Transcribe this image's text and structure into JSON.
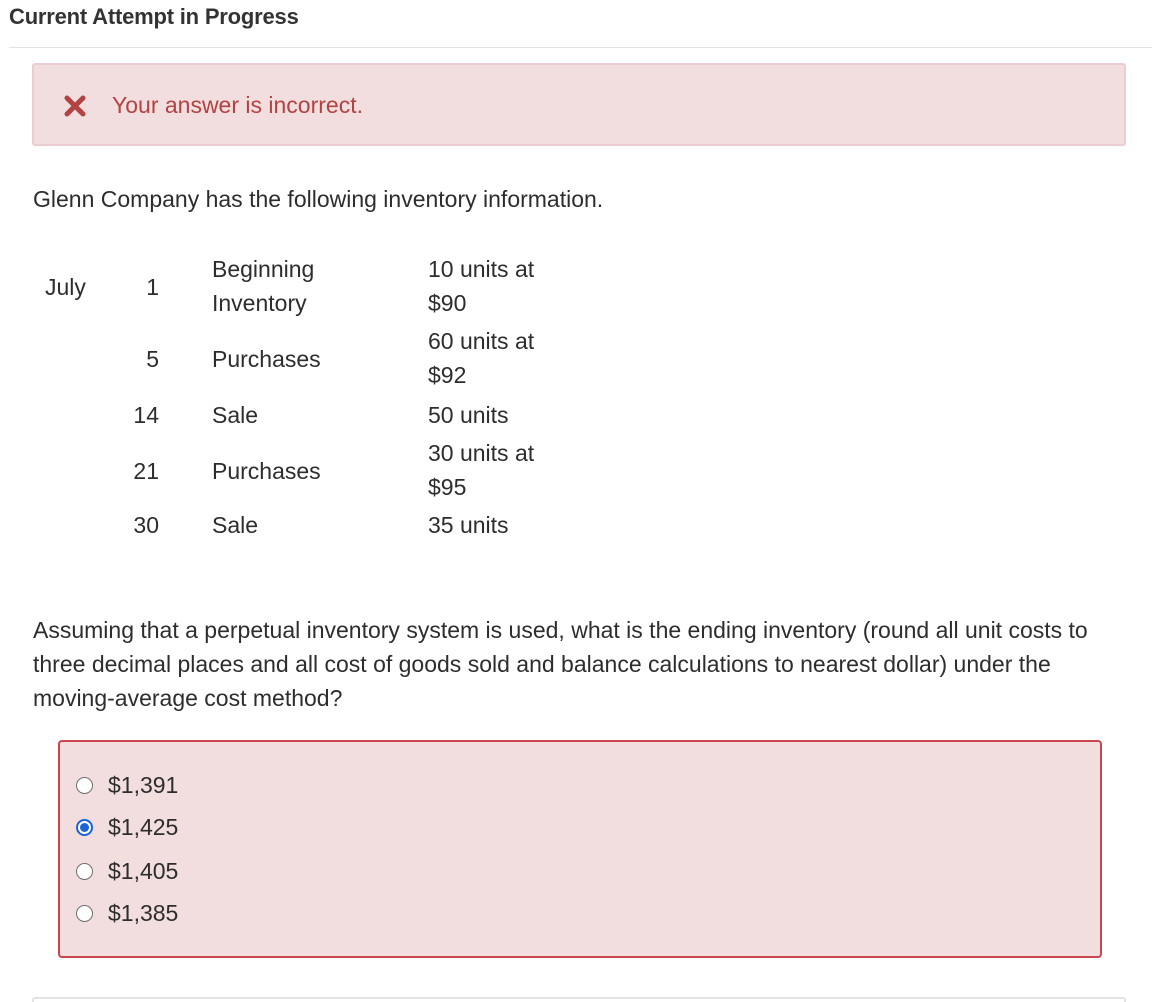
{
  "header": {
    "title": "Current Attempt in Progress"
  },
  "alert": {
    "icon": "close-x-icon",
    "message": "Your answer is incorrect.",
    "color": "#b14343",
    "background": "#f2dede"
  },
  "intro": "Glenn Company has the following inventory information.",
  "inventory": [
    {
      "month": "July",
      "day": "1",
      "description": "Beginning Inventory",
      "quantity": "10 units at $90"
    },
    {
      "month": "",
      "day": "5",
      "description": "Purchases",
      "quantity": "60 units at $92"
    },
    {
      "month": "",
      "day": "14",
      "description": "Sale",
      "quantity": "50 units"
    },
    {
      "month": "",
      "day": "21",
      "description": "Purchases",
      "quantity": "30 units at $95"
    },
    {
      "month": "",
      "day": "30",
      "description": "Sale",
      "quantity": "35 units"
    }
  ],
  "question": "Assuming that a perpetual inventory system is used, what is the ending inventory (round all unit costs to three decimal places and all cost of goods sold and balance calculations to nearest dollar) under the moving-average cost method?",
  "options": [
    {
      "label": "$1,391",
      "selected": false
    },
    {
      "label": "$1,425",
      "selected": true
    },
    {
      "label": "$1,405",
      "selected": false
    },
    {
      "label": "$1,385",
      "selected": false
    }
  ],
  "colors": {
    "selected_radio": "#1a63d8",
    "incorrect_border": "#c9474d"
  }
}
